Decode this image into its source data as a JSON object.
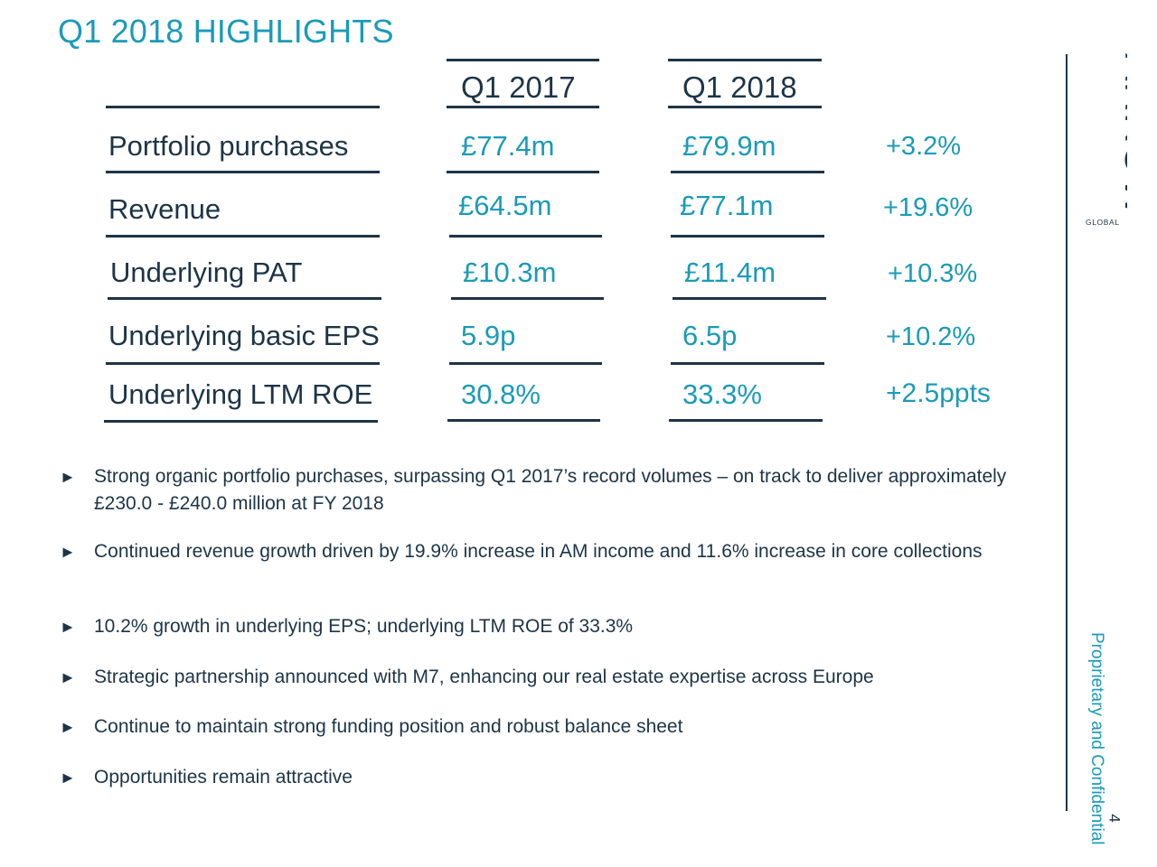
{
  "slide": {
    "title": "Q1 2018 HIGHLIGHTS",
    "columns": [
      "Q1 2017",
      "Q1 2018"
    ],
    "rows": [
      {
        "metric": "Portfolio purchases",
        "q1_2017": "£77.4m",
        "q1_2018": "£79.9m",
        "change": "+3.2%"
      },
      {
        "metric": "Revenue",
        "q1_2017": "£64.5m",
        "q1_2018": "£77.1m",
        "change": "+19.6%"
      },
      {
        "metric": "Underlying PAT",
        "q1_2017": "£10.3m",
        "q1_2018": "£11.4m",
        "change": "+10.3%"
      },
      {
        "metric": "Underlying basic EPS",
        "q1_2017": "5.9p",
        "q1_2018": "6.5p",
        "change": "+10.2%"
      },
      {
        "metric": "Underlying LTM ROE",
        "q1_2017": "30.8%",
        "q1_2018": "33.3%",
        "change": "+2.5ppts"
      }
    ],
    "bullets": [
      "Strong organic portfolio purchases, surpassing Q1 2017’s record volumes – on track to deliver approximately £230.0 - £240.0 million at FY 2018",
      "Continued revenue growth driven by 19.9% increase in AM income and 11.6% increase in core collections",
      "10.2% growth in underlying EPS; underlying LTM ROE of 33.3%",
      "Strategic partnership announced with M7, enhancing our real estate expertise across Europe",
      "Continue to maintain strong funding position and robust balance sheet",
      "Opportunities remain attractive"
    ],
    "bullet_marker": "►",
    "logo": {
      "name": "ARROW",
      "subtitle": "GLOBAL"
    },
    "side_text": "Proprietary and Confidential",
    "page_number": "4",
    "colors": {
      "accent": "#1a9bb8",
      "text": "#1d3447",
      "background": "#ffffff"
    }
  }
}
